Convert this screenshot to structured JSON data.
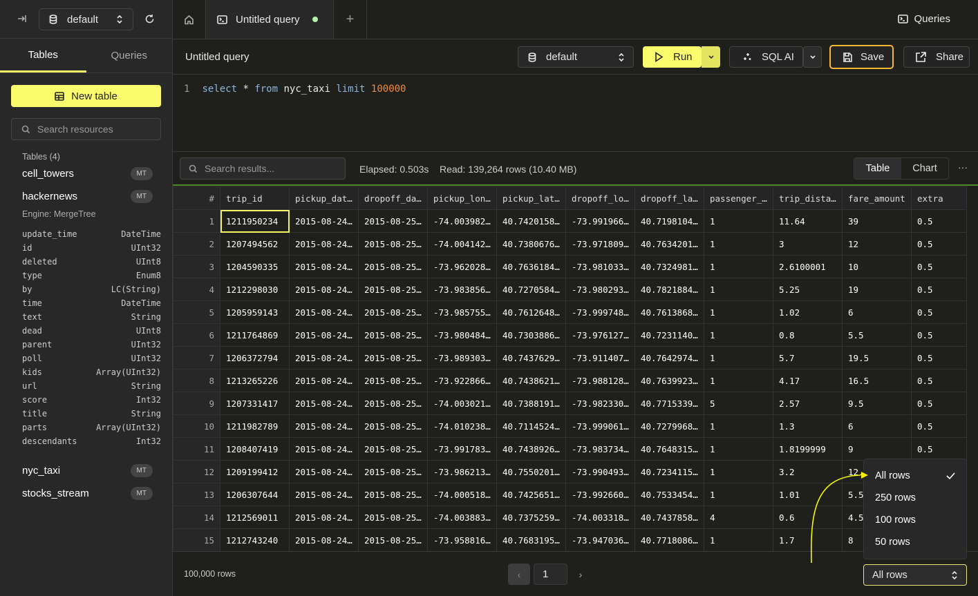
{
  "sidebar": {
    "database": "default",
    "tabs": [
      "Tables",
      "Queries"
    ],
    "new_table": "New table",
    "search_placeholder": "Search resources",
    "tables_heading": "Tables (4)",
    "tables": [
      {
        "name": "cell_towers",
        "badge": "MT"
      },
      {
        "name": "hackernews",
        "badge": "MT",
        "engine": "Engine: MergeTree",
        "columns": [
          [
            "update_time",
            "DateTime"
          ],
          [
            "id",
            "UInt32"
          ],
          [
            "deleted",
            "UInt8"
          ],
          [
            "type",
            "Enum8"
          ],
          [
            "by",
            "LC(String)"
          ],
          [
            "time",
            "DateTime"
          ],
          [
            "text",
            "String"
          ],
          [
            "dead",
            "UInt8"
          ],
          [
            "parent",
            "UInt32"
          ],
          [
            "poll",
            "UInt32"
          ],
          [
            "kids",
            "Array(UInt32)"
          ],
          [
            "url",
            "String"
          ],
          [
            "score",
            "Int32"
          ],
          [
            "title",
            "String"
          ],
          [
            "parts",
            "Array(UInt32)"
          ],
          [
            "descendants",
            "Int32"
          ]
        ]
      },
      {
        "name": "nyc_taxi",
        "badge": "MT"
      },
      {
        "name": "stocks_stream",
        "badge": "MT"
      }
    ]
  },
  "tabs": {
    "query_tab": "Untitled query",
    "queries_link": "Queries"
  },
  "query": {
    "title": "Untitled query",
    "database": "default",
    "run": "Run",
    "sql_ai": "SQL AI",
    "save": "Save",
    "share": "Share",
    "line_number": "1",
    "sql": {
      "k1": "select",
      "star": " * ",
      "k2": "from",
      "table": " nyc_taxi ",
      "k3": "limit",
      "limit": " 100000"
    }
  },
  "results": {
    "search_placeholder": "Search results...",
    "elapsed": "Elapsed: 0.503s",
    "read": "Read: 139,264 rows (10.40 MB)",
    "views": [
      "Table",
      "Chart"
    ],
    "selected_view": "Table",
    "columns": [
      "#",
      "trip_id",
      "pickup_dat…",
      "dropoff_da…",
      "pickup_lon…",
      "pickup_lat…",
      "dropoff_lo…",
      "dropoff_la…",
      "passenger_…",
      "trip_dista…",
      "fare_amount",
      "extra"
    ],
    "rows": [
      [
        "1",
        "1211950234",
        "2015-08-24…",
        "2015-08-25…",
        "-74.003982…",
        "40.7420158…",
        "-73.991966…",
        "40.7198104…",
        "1",
        "11.64",
        "39",
        "0.5"
      ],
      [
        "2",
        "1207494562",
        "2015-08-24…",
        "2015-08-25…",
        "-74.004142…",
        "40.7380676…",
        "-73.971809…",
        "40.7634201…",
        "1",
        "3",
        "12",
        "0.5"
      ],
      [
        "3",
        "1204590335",
        "2015-08-24…",
        "2015-08-25…",
        "-73.962028…",
        "40.7636184…",
        "-73.981033…",
        "40.7324981…",
        "1",
        "2.6100001",
        "10",
        "0.5"
      ],
      [
        "4",
        "1212298030",
        "2015-08-24…",
        "2015-08-25…",
        "-73.983856…",
        "40.7270584…",
        "-73.980293…",
        "40.7821884…",
        "1",
        "5.25",
        "19",
        "0.5"
      ],
      [
        "5",
        "1205959143",
        "2015-08-24…",
        "2015-08-25…",
        "-73.985755…",
        "40.7612648…",
        "-73.999748…",
        "40.7613868…",
        "1",
        "1.02",
        "6",
        "0.5"
      ],
      [
        "6",
        "1211764869",
        "2015-08-24…",
        "2015-08-25…",
        "-73.980484…",
        "40.7303886…",
        "-73.976127…",
        "40.7231140…",
        "1",
        "0.8",
        "5.5",
        "0.5"
      ],
      [
        "7",
        "1206372794",
        "2015-08-24…",
        "2015-08-25…",
        "-73.989303…",
        "40.7437629…",
        "-73.911407…",
        "40.7642974…",
        "1",
        "5.7",
        "19.5",
        "0.5"
      ],
      [
        "8",
        "1213265226",
        "2015-08-24…",
        "2015-08-25…",
        "-73.922866…",
        "40.7438621…",
        "-73.988128…",
        "40.7639923…",
        "1",
        "4.17",
        "16.5",
        "0.5"
      ],
      [
        "9",
        "1207331417",
        "2015-08-24…",
        "2015-08-25…",
        "-74.003021…",
        "40.7388191…",
        "-73.982330…",
        "40.7715339…",
        "5",
        "2.57",
        "9.5",
        "0.5"
      ],
      [
        "10",
        "1211982789",
        "2015-08-24…",
        "2015-08-25…",
        "-74.010238…",
        "40.7114524…",
        "-73.999061…",
        "40.7279968…",
        "1",
        "1.3",
        "6",
        "0.5"
      ],
      [
        "11",
        "1208407419",
        "2015-08-24…",
        "2015-08-25…",
        "-73.991783…",
        "40.7438926…",
        "-73.983734…",
        "40.7648315…",
        "1",
        "1.8199999",
        "9",
        "0.5"
      ],
      [
        "12",
        "1209199412",
        "2015-08-24…",
        "2015-08-25…",
        "-73.986213…",
        "40.7550201…",
        "-73.990493…",
        "40.7234115…",
        "1",
        "3.2",
        "12.",
        ""
      ],
      [
        "13",
        "1206307644",
        "2015-08-24…",
        "2015-08-25…",
        "-74.000518…",
        "40.7425651…",
        "-73.992660…",
        "40.7533454…",
        "1",
        "1.01",
        "5.5",
        ""
      ],
      [
        "14",
        "1212569011",
        "2015-08-24…",
        "2015-08-25…",
        "-74.003883…",
        "40.7375259…",
        "-74.003318…",
        "40.7437858…",
        "4",
        "0.6",
        "4.5",
        ""
      ],
      [
        "15",
        "1212743240",
        "2015-08-24…",
        "2015-08-25…",
        "-73.958816…",
        "40.7683195…",
        "-73.947036…",
        "40.7718086…",
        "1",
        "1.7",
        "8",
        ""
      ]
    ]
  },
  "footer": {
    "row_count": "100,000 rows",
    "page": "1",
    "limit": "All rows"
  },
  "limit_menu": {
    "options": [
      "All rows",
      "250 rows",
      "100 rows",
      "50 rows"
    ],
    "selected": "All rows"
  },
  "colors": {
    "accent": "#fafb6d",
    "focus": "#f5b833",
    "progress": "#4d8a2e",
    "annotation_arrow": "#f5f500"
  }
}
